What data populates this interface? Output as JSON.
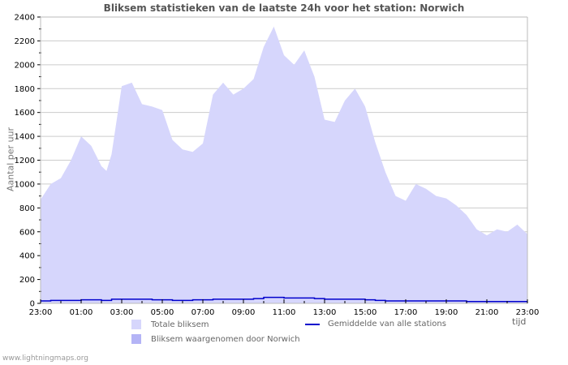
{
  "title": "Bliksem statistieken van de laatste 24h voor het station: Norwich",
  "footer": "www.lightningmaps.org",
  "colors": {
    "total_fill": "#d6d6fc",
    "station_fill": "#b4b4f6",
    "average_line": "#0000cc",
    "grid": "#cccccc",
    "axis": "#bbbbbb"
  },
  "legend": [
    {
      "label": "Totale bliksem",
      "type": "area",
      "color": "#d6d6fc"
    },
    {
      "label": "Bliksem waargenomen door Norwich",
      "type": "area",
      "color": "#b4b4f6"
    },
    {
      "label": "Gemiddelde van alle stations",
      "type": "line",
      "color": "#0000cc"
    }
  ],
  "chart_data": {
    "type": "area",
    "title": "Bliksem statistieken van de laatste 24h voor het station: Norwich",
    "xlabel": "tijd",
    "ylabel": "Aantal per uur",
    "ylim": [
      0,
      2400
    ],
    "yticks": [
      0,
      200,
      400,
      600,
      800,
      1000,
      1200,
      1400,
      1600,
      1800,
      2000,
      2200,
      2400
    ],
    "xtick_labels": [
      "23:00",
      "01:00",
      "03:00",
      "05:00",
      "07:00",
      "09:00",
      "11:00",
      "13:00",
      "15:00",
      "17:00",
      "19:00",
      "21:00",
      "23:00"
    ],
    "grid": true,
    "legend_position": "bottom",
    "x_hours": [
      0,
      0.5,
      1,
      1.5,
      2,
      2.5,
      3,
      3.25,
      3.5,
      4,
      4.5,
      5,
      5.5,
      6,
      6.5,
      7,
      7.5,
      8,
      8.5,
      9,
      9.5,
      10,
      10.5,
      11,
      11.5,
      12,
      12.5,
      13,
      13.5,
      14,
      14.5,
      15,
      15.5,
      16,
      16.5,
      17,
      17.5,
      18,
      18.5,
      19,
      19.5,
      20,
      20.5,
      21,
      21.5,
      22,
      22.5,
      23,
      23.5,
      24
    ],
    "series": [
      {
        "name": "Totale bliksem",
        "values": [
          870,
          1000,
          1050,
          1200,
          1400,
          1320,
          1150,
          1110,
          1250,
          1820,
          1850,
          1670,
          1650,
          1620,
          1370,
          1290,
          1270,
          1340,
          1750,
          1850,
          1750,
          1800,
          1880,
          2150,
          2320,
          2080,
          2000,
          2120,
          1900,
          1540,
          1520,
          1700,
          1800,
          1650,
          1350,
          1100,
          900,
          860,
          1000,
          960,
          900,
          880,
          820,
          740,
          620,
          570,
          620,
          600,
          660,
          580
        ]
      },
      {
        "name": "Bliksem waargenomen door Norwich",
        "values": [
          0,
          0,
          0,
          0,
          0,
          0,
          0,
          0,
          0,
          0,
          0,
          0,
          0,
          0,
          0,
          0,
          0,
          0,
          0,
          0,
          0,
          0,
          0,
          0,
          0,
          0,
          0,
          0,
          0,
          0,
          0,
          0,
          0,
          0,
          0,
          0,
          0,
          0,
          0,
          0,
          0,
          0,
          0,
          0,
          0,
          0,
          0,
          0,
          0,
          0
        ]
      },
      {
        "name": "Gemiddelde van alle stations",
        "values": [
          20,
          25,
          25,
          25,
          30,
          30,
          25,
          25,
          35,
          35,
          35,
          35,
          30,
          30,
          25,
          25,
          30,
          30,
          35,
          35,
          35,
          35,
          40,
          50,
          50,
          45,
          45,
          45,
          40,
          35,
          35,
          35,
          35,
          30,
          25,
          20,
          20,
          20,
          20,
          20,
          20,
          20,
          20,
          15,
          15,
          15,
          15,
          15,
          15,
          15
        ]
      }
    ]
  }
}
